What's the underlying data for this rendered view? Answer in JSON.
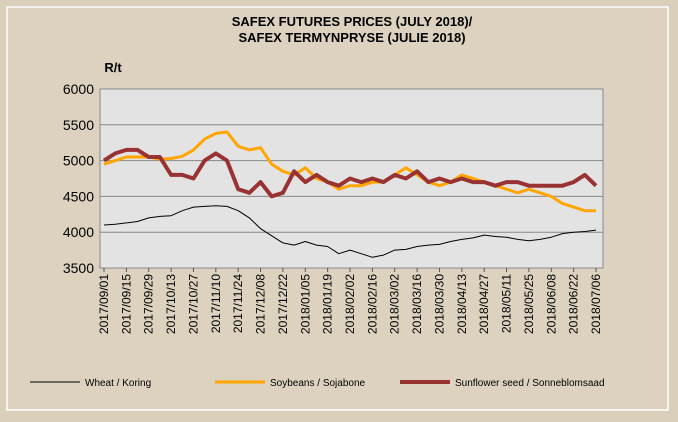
{
  "chart_data": {
    "type": "line",
    "title": "SAFEX FUTURES PRICES (JULY 2018)/",
    "subtitle": "SAFEX TERMYNPRYSE (JULIE 2018)",
    "y_label": "R/t",
    "categories": [
      "2017/09/01",
      null,
      "2017/09/15",
      null,
      "2017/09/29",
      null,
      "2017/10/13",
      null,
      "2017/10/27",
      null,
      "2017/11/10",
      null,
      "2017/11/24",
      null,
      "2017/12/08",
      null,
      "2017/12/22",
      null,
      "2018/01/05",
      null,
      "2018/01/19",
      null,
      "2018/02/02",
      null,
      "2018/02/16",
      null,
      "2018/03/02",
      null,
      "2018/03/16",
      null,
      "2018/03/30",
      null,
      "2018/04/13",
      null,
      "2018/04/27",
      null,
      "2018/05/11",
      null,
      "2018/05/25",
      null,
      "2018/06/08",
      null,
      "2018/06/22",
      null,
      "2018/07/06"
    ],
    "series": [
      {
        "name": "Wheat / Koring",
        "color": "#000000",
        "width": 1,
        "values": [
          4100,
          4110,
          4130,
          4150,
          4200,
          4220,
          4230,
          4300,
          4350,
          4360,
          4370,
          4360,
          4300,
          4200,
          4050,
          3950,
          3850,
          3820,
          3870,
          3820,
          3800,
          3700,
          3750,
          3700,
          3650,
          3680,
          3750,
          3760,
          3800,
          3820,
          3830,
          3870,
          3900,
          3920,
          3960,
          3940,
          3930,
          3900,
          3880,
          3900,
          3930,
          3980,
          4000,
          4010,
          4030
        ]
      },
      {
        "name": "Soybeans / Sojabone",
        "color": "#ffa500",
        "width": 3,
        "values": [
          4950,
          5000,
          5050,
          5050,
          5050,
          5020,
          5030,
          5060,
          5150,
          5300,
          5380,
          5400,
          5200,
          5150,
          5180,
          4950,
          4850,
          4800,
          4900,
          4750,
          4700,
          4600,
          4650,
          4650,
          4700,
          4700,
          4800,
          4900,
          4800,
          4700,
          4650,
          4700,
          4800,
          4750,
          4700,
          4650,
          4600,
          4550,
          4600,
          4550,
          4500,
          4400,
          4350,
          4300,
          4300
        ]
      },
      {
        "name": "Sunflower seed / Sonneblomsaad",
        "color": "#993333",
        "width": 4,
        "values": [
          5000,
          5100,
          5150,
          5150,
          5050,
          5050,
          4800,
          4800,
          4750,
          5000,
          5100,
          5000,
          4600,
          4550,
          4700,
          4500,
          4550,
          4850,
          4700,
          4800,
          4700,
          4650,
          4750,
          4700,
          4750,
          4700,
          4800,
          4750,
          4850,
          4700,
          4750,
          4700,
          4750,
          4700,
          4700,
          4650,
          4700,
          4700,
          4650,
          4650,
          4650,
          4650,
          4700,
          4800,
          4650
        ]
      }
    ],
    "ylim": [
      3500,
      6000
    ],
    "yticks": [
      3500,
      4000,
      4500,
      5000,
      5500,
      6000
    ],
    "grid": true
  }
}
